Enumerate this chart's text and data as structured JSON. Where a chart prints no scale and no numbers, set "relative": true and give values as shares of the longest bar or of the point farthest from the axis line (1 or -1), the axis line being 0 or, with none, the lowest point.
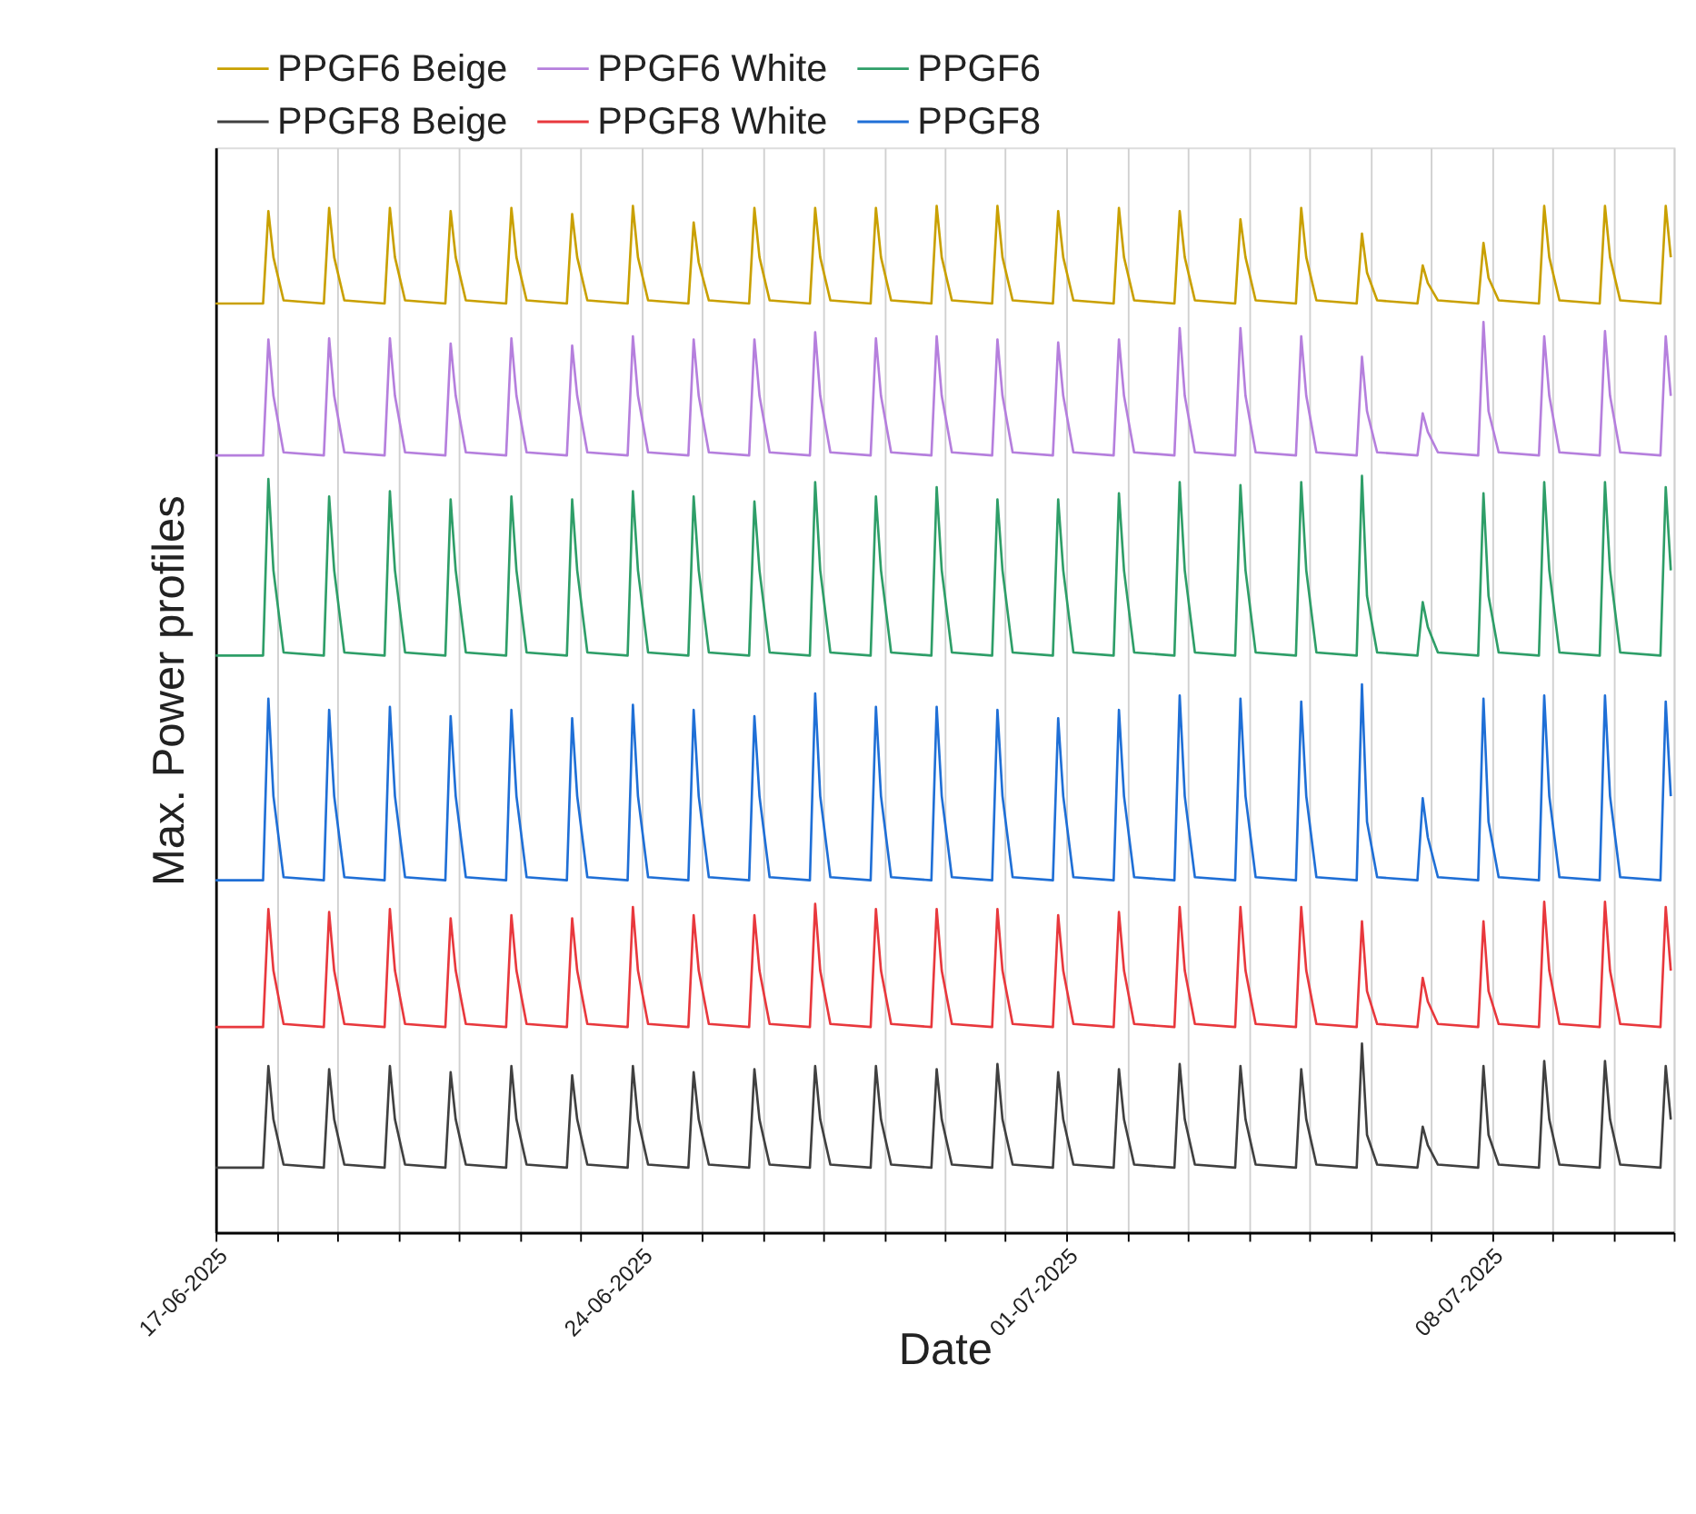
{
  "chart_data": {
    "type": "line",
    "relative": true,
    "xlabel": "Date",
    "ylabel": "Max. Power profiles",
    "legend": "top",
    "grid": "x",
    "marker": "none",
    "line_style": "solid",
    "xlim": [
      "2025-06-17",
      "2025-07-11"
    ],
    "xticks": [
      {
        "value": "2025-06-17",
        "label": "17-06-2025"
      },
      {
        "value": "2025-06-18",
        "label": null
      },
      {
        "value": "2025-06-19",
        "label": null
      },
      {
        "value": "2025-06-20",
        "label": null
      },
      {
        "value": "2025-06-21",
        "label": null
      },
      {
        "value": "2025-06-22",
        "label": null
      },
      {
        "value": "2025-06-23",
        "label": null
      },
      {
        "value": "2025-06-24",
        "label": "24-06-2025"
      },
      {
        "value": "2025-06-25",
        "label": null
      },
      {
        "value": "2025-06-26",
        "label": null
      },
      {
        "value": "2025-06-27",
        "label": null
      },
      {
        "value": "2025-06-28",
        "label": null
      },
      {
        "value": "2025-06-29",
        "label": null
      },
      {
        "value": "2025-06-30",
        "label": null
      },
      {
        "value": "2025-07-01",
        "label": "01-07-2025"
      },
      {
        "value": "2025-07-02",
        "label": null
      },
      {
        "value": "2025-07-03",
        "label": null
      },
      {
        "value": "2025-07-04",
        "label": null
      },
      {
        "value": "2025-07-05",
        "label": null
      },
      {
        "value": "2025-07-06",
        "label": null
      },
      {
        "value": "2025-07-07",
        "label": null
      },
      {
        "value": "2025-07-08",
        "label": "08-07-2025"
      },
      {
        "value": "2025-07-09",
        "label": null
      },
      {
        "value": "2025-07-10",
        "label": null
      },
      {
        "value": "2025-07-11",
        "label": null
      }
    ],
    "x": [
      "2025-06-17T00:00",
      "2025-06-17T18:45",
      "2025-06-17T20:50",
      "2025-06-17T22:50",
      "2025-06-18T02:50",
      "2025-06-18T18:45",
      "2025-06-18T20:50",
      "2025-06-18T22:50",
      "2025-06-19T02:50",
      "2025-06-19T18:45",
      "2025-06-19T20:50",
      "2025-06-19T22:50",
      "2025-06-20T02:50",
      "2025-06-20T18:45",
      "2025-06-20T20:50",
      "2025-06-20T22:50",
      "2025-06-21T02:50",
      "2025-06-21T18:45",
      "2025-06-21T20:50",
      "2025-06-21T22:50",
      "2025-06-22T02:50",
      "2025-06-22T18:45",
      "2025-06-22T20:50",
      "2025-06-22T22:50",
      "2025-06-23T02:50",
      "2025-06-23T18:45",
      "2025-06-23T20:50",
      "2025-06-23T22:50",
      "2025-06-24T02:50",
      "2025-06-24T18:45",
      "2025-06-24T20:50",
      "2025-06-24T22:50",
      "2025-06-25T02:50",
      "2025-06-25T18:45",
      "2025-06-25T20:50",
      "2025-06-25T22:50",
      "2025-06-26T02:50",
      "2025-06-26T18:45",
      "2025-06-26T20:50",
      "2025-06-26T22:50",
      "2025-06-27T02:50",
      "2025-06-27T18:45",
      "2025-06-27T20:50",
      "2025-06-27T22:50",
      "2025-06-28T02:50",
      "2025-06-28T18:45",
      "2025-06-28T20:50",
      "2025-06-28T22:50",
      "2025-06-29T02:50",
      "2025-06-29T18:45",
      "2025-06-29T20:50",
      "2025-06-29T22:50",
      "2025-06-30T02:50",
      "2025-06-30T18:45",
      "2025-06-30T20:50",
      "2025-06-30T22:50",
      "2025-07-01T02:50",
      "2025-07-01T18:45",
      "2025-07-01T20:50",
      "2025-07-01T22:50",
      "2025-07-02T02:50",
      "2025-07-02T18:45",
      "2025-07-02T20:50",
      "2025-07-02T22:50",
      "2025-07-03T02:50",
      "2025-07-03T18:45",
      "2025-07-03T20:50",
      "2025-07-03T22:50",
      "2025-07-04T02:50",
      "2025-07-04T18:45",
      "2025-07-04T20:50",
      "2025-07-04T22:50",
      "2025-07-05T02:50",
      "2025-07-05T18:45",
      "2025-07-05T20:50",
      "2025-07-05T22:50",
      "2025-07-06T02:50",
      "2025-07-06T18:45",
      "2025-07-06T20:50",
      "2025-07-06T22:50",
      "2025-07-07T02:50",
      "2025-07-07T18:45",
      "2025-07-07T20:50",
      "2025-07-07T22:50",
      "2025-07-08T02:50",
      "2025-07-08T18:45",
      "2025-07-08T20:50",
      "2025-07-08T22:50",
      "2025-07-09T02:50",
      "2025-07-09T18:45",
      "2025-07-09T20:50",
      "2025-07-09T22:50",
      "2025-07-10T02:50",
      "2025-07-10T18:45",
      "2025-07-10T20:50",
      "2025-07-10T22:50"
    ],
    "series": [
      {
        "name": "PPGF6 Beige",
        "color": "#c9a000",
        "values": [
          0.905,
          0.905,
          0.995,
          0.95,
          0.908,
          0.905,
          0.998,
          0.95,
          0.908,
          0.905,
          0.998,
          0.95,
          0.908,
          0.905,
          0.995,
          0.95,
          0.908,
          0.905,
          0.998,
          0.95,
          0.908,
          0.905,
          0.992,
          0.95,
          0.908,
          0.905,
          1.0,
          0.95,
          0.908,
          0.905,
          0.984,
          0.945,
          0.908,
          0.905,
          0.998,
          0.95,
          0.908,
          0.905,
          0.998,
          0.95,
          0.908,
          0.905,
          0.998,
          0.95,
          0.908,
          0.905,
          1.0,
          0.95,
          0.908,
          0.905,
          1.0,
          0.95,
          0.908,
          0.905,
          0.995,
          0.95,
          0.908,
          0.905,
          0.998,
          0.95,
          0.908,
          0.905,
          0.995,
          0.95,
          0.908,
          0.905,
          0.987,
          0.95,
          0.908,
          0.905,
          0.998,
          0.95,
          0.908,
          0.905,
          0.973,
          0.935,
          0.908,
          0.905,
          0.942,
          0.925,
          0.908,
          0.905,
          0.964,
          0.93,
          0.908,
          0.905,
          1.0,
          0.95,
          0.908,
          0.905,
          1.0,
          0.95,
          0.908,
          0.905,
          1.0,
          0.95
        ]
      },
      {
        "name": "PPGF6 White",
        "color": "#b57fdd",
        "values": [
          0.757,
          0.757,
          0.87,
          0.815,
          0.76,
          0.757,
          0.871,
          0.815,
          0.76,
          0.757,
          0.871,
          0.815,
          0.76,
          0.757,
          0.866,
          0.815,
          0.76,
          0.757,
          0.871,
          0.815,
          0.76,
          0.757,
          0.864,
          0.815,
          0.76,
          0.757,
          0.873,
          0.815,
          0.76,
          0.757,
          0.87,
          0.815,
          0.76,
          0.757,
          0.87,
          0.815,
          0.76,
          0.757,
          0.877,
          0.815,
          0.76,
          0.757,
          0.871,
          0.815,
          0.76,
          0.757,
          0.873,
          0.815,
          0.76,
          0.757,
          0.87,
          0.815,
          0.76,
          0.757,
          0.867,
          0.815,
          0.76,
          0.757,
          0.87,
          0.815,
          0.76,
          0.757,
          0.881,
          0.815,
          0.76,
          0.757,
          0.881,
          0.815,
          0.76,
          0.757,
          0.873,
          0.815,
          0.76,
          0.757,
          0.853,
          0.8,
          0.76,
          0.757,
          0.798,
          0.78,
          0.76,
          0.757,
          0.887,
          0.8,
          0.76,
          0.757,
          0.873,
          0.815,
          0.76,
          0.757,
          0.878,
          0.815,
          0.76,
          0.757,
          0.873,
          0.815
        ]
      },
      {
        "name": "PPGF6",
        "color": "#2e9e68",
        "values": [
          0.562,
          0.562,
          0.734,
          0.645,
          0.565,
          0.562,
          0.717,
          0.645,
          0.565,
          0.562,
          0.722,
          0.645,
          0.565,
          0.562,
          0.714,
          0.645,
          0.565,
          0.562,
          0.717,
          0.645,
          0.565,
          0.562,
          0.714,
          0.645,
          0.565,
          0.562,
          0.722,
          0.645,
          0.565,
          0.562,
          0.717,
          0.645,
          0.565,
          0.562,
          0.712,
          0.645,
          0.565,
          0.562,
          0.731,
          0.645,
          0.565,
          0.562,
          0.717,
          0.645,
          0.565,
          0.562,
          0.726,
          0.645,
          0.565,
          0.562,
          0.714,
          0.645,
          0.565,
          0.562,
          0.714,
          0.645,
          0.565,
          0.562,
          0.72,
          0.645,
          0.565,
          0.562,
          0.731,
          0.645,
          0.565,
          0.562,
          0.728,
          0.645,
          0.565,
          0.562,
          0.731,
          0.645,
          0.565,
          0.562,
          0.737,
          0.62,
          0.565,
          0.562,
          0.614,
          0.59,
          0.565,
          0.562,
          0.72,
          0.62,
          0.565,
          0.562,
          0.731,
          0.645,
          0.565,
          0.562,
          0.731,
          0.645,
          0.565,
          0.562,
          0.726,
          0.645
        ]
      },
      {
        "name": "PPGF8 Beige",
        "color": "#404040",
        "values": [
          0.063,
          0.063,
          0.162,
          0.11,
          0.066,
          0.063,
          0.159,
          0.11,
          0.066,
          0.063,
          0.162,
          0.11,
          0.066,
          0.063,
          0.156,
          0.11,
          0.066,
          0.063,
          0.162,
          0.11,
          0.066,
          0.063,
          0.153,
          0.11,
          0.066,
          0.063,
          0.162,
          0.11,
          0.066,
          0.063,
          0.156,
          0.11,
          0.066,
          0.063,
          0.159,
          0.11,
          0.066,
          0.063,
          0.162,
          0.11,
          0.066,
          0.063,
          0.162,
          0.11,
          0.066,
          0.063,
          0.159,
          0.11,
          0.066,
          0.063,
          0.164,
          0.11,
          0.066,
          0.063,
          0.156,
          0.11,
          0.066,
          0.063,
          0.159,
          0.11,
          0.066,
          0.063,
          0.164,
          0.11,
          0.066,
          0.063,
          0.162,
          0.11,
          0.066,
          0.063,
          0.159,
          0.11,
          0.066,
          0.063,
          0.184,
          0.095,
          0.066,
          0.063,
          0.103,
          0.085,
          0.066,
          0.063,
          0.162,
          0.095,
          0.066,
          0.063,
          0.167,
          0.11,
          0.066,
          0.063,
          0.167,
          0.11,
          0.066,
          0.063,
          0.162,
          0.11
        ]
      },
      {
        "name": "PPGF8 White",
        "color": "#e8383d",
        "values": [
          0.2,
          0.2,
          0.315,
          0.255,
          0.203,
          0.2,
          0.312,
          0.255,
          0.203,
          0.2,
          0.315,
          0.255,
          0.203,
          0.2,
          0.306,
          0.255,
          0.203,
          0.2,
          0.309,
          0.255,
          0.203,
          0.2,
          0.306,
          0.255,
          0.203,
          0.2,
          0.317,
          0.255,
          0.203,
          0.2,
          0.309,
          0.255,
          0.203,
          0.2,
          0.309,
          0.255,
          0.203,
          0.2,
          0.32,
          0.255,
          0.203,
          0.2,
          0.315,
          0.255,
          0.203,
          0.2,
          0.315,
          0.255,
          0.203,
          0.2,
          0.315,
          0.255,
          0.203,
          0.2,
          0.309,
          0.255,
          0.203,
          0.2,
          0.312,
          0.255,
          0.203,
          0.2,
          0.317,
          0.255,
          0.203,
          0.2,
          0.317,
          0.255,
          0.203,
          0.2,
          0.317,
          0.255,
          0.203,
          0.2,
          0.303,
          0.235,
          0.203,
          0.2,
          0.248,
          0.225,
          0.203,
          0.2,
          0.303,
          0.235,
          0.203,
          0.2,
          0.322,
          0.255,
          0.203,
          0.2,
          0.322,
          0.255,
          0.203,
          0.2,
          0.317,
          0.255
        ]
      },
      {
        "name": "PPGF8",
        "color": "#1f6fd6",
        "values": [
          0.343,
          0.343,
          0.52,
          0.425,
          0.346,
          0.343,
          0.509,
          0.425,
          0.346,
          0.343,
          0.512,
          0.425,
          0.346,
          0.343,
          0.503,
          0.425,
          0.346,
          0.343,
          0.509,
          0.425,
          0.346,
          0.343,
          0.501,
          0.425,
          0.346,
          0.343,
          0.514,
          0.425,
          0.346,
          0.343,
          0.509,
          0.425,
          0.346,
          0.343,
          0.503,
          0.425,
          0.346,
          0.343,
          0.525,
          0.425,
          0.346,
          0.343,
          0.512,
          0.425,
          0.346,
          0.343,
          0.512,
          0.425,
          0.346,
          0.343,
          0.509,
          0.425,
          0.346,
          0.343,
          0.501,
          0.425,
          0.346,
          0.343,
          0.509,
          0.425,
          0.346,
          0.343,
          0.523,
          0.425,
          0.346,
          0.343,
          0.52,
          0.425,
          0.346,
          0.343,
          0.517,
          0.425,
          0.346,
          0.343,
          0.534,
          0.4,
          0.346,
          0.343,
          0.423,
          0.385,
          0.346,
          0.343,
          0.52,
          0.4,
          0.346,
          0.343,
          0.523,
          0.425,
          0.346,
          0.343,
          0.523,
          0.425,
          0.346,
          0.343,
          0.517,
          0.425
        ]
      }
    ]
  }
}
